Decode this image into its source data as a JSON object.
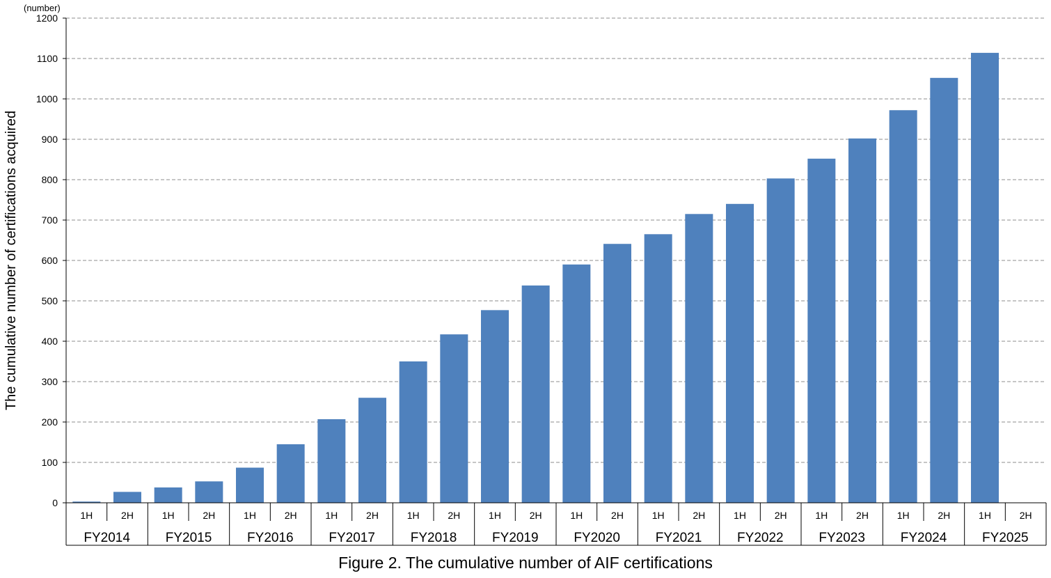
{
  "chart_data": {
    "type": "bar",
    "title": "",
    "caption": "Figure 2. The cumulative number of AIF certifications",
    "ylabel": "The cumulative number of certifications acquired",
    "unit_label": "(number)",
    "xlabel": "",
    "ylim": [
      0,
      1200
    ],
    "yticks": [
      0,
      100,
      200,
      300,
      400,
      500,
      600,
      700,
      800,
      900,
      1000,
      1100,
      1200
    ],
    "grid": true,
    "bar_color": "#4f81bd",
    "fiscal_years": [
      "FY2014",
      "FY2015",
      "FY2016",
      "FY2017",
      "FY2018",
      "FY2019",
      "FY2020",
      "FY2021",
      "FY2022",
      "FY2023",
      "FY2024",
      "FY2025"
    ],
    "halves": [
      "1H",
      "2H"
    ],
    "values": [
      3,
      27,
      38,
      53,
      87,
      145,
      207,
      260,
      350,
      417,
      477,
      538,
      590,
      641,
      665,
      715,
      740,
      803,
      852,
      902,
      972,
      1052,
      1114,
      null
    ]
  }
}
